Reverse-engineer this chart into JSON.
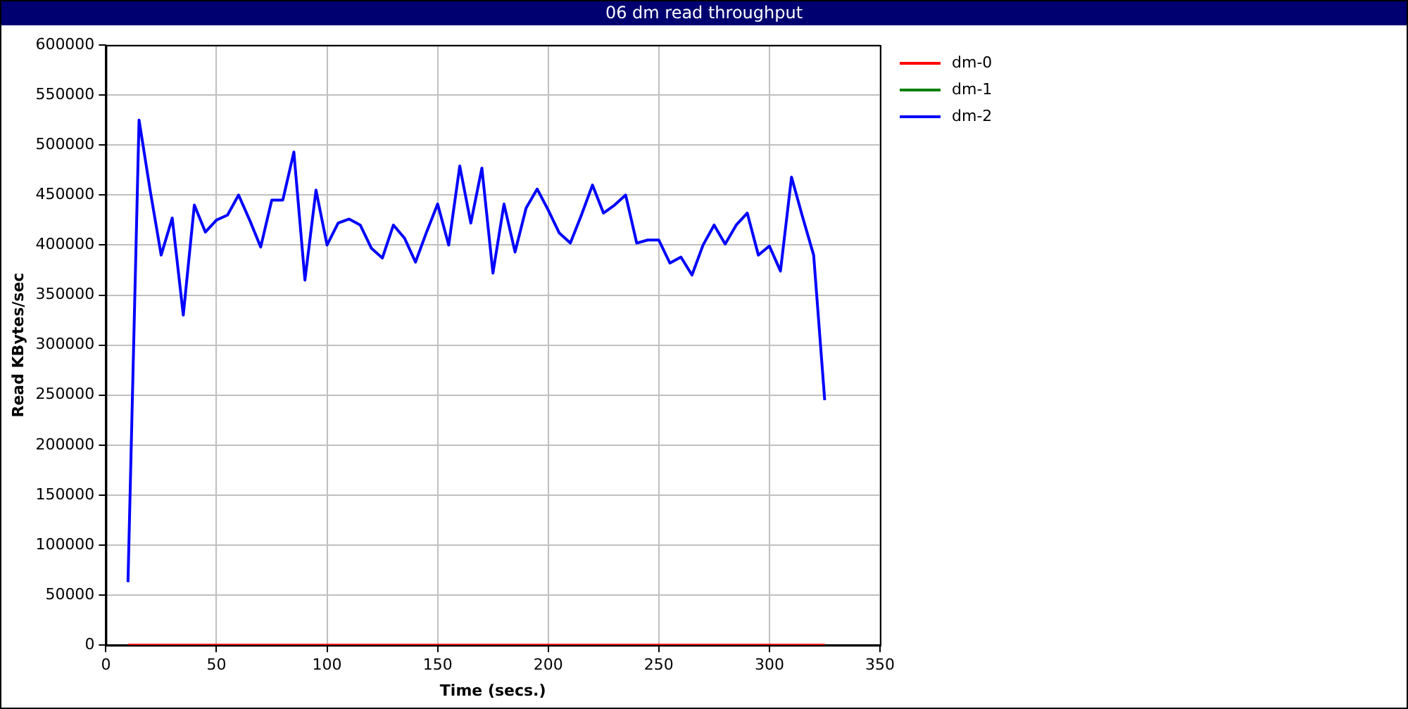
{
  "chart_data": {
    "type": "line",
    "title": "06 dm read throughput",
    "xlabel": "Time (secs.)",
    "ylabel": "Read KBytes/sec",
    "x": [
      10,
      15,
      20,
      25,
      30,
      35,
      40,
      45,
      50,
      55,
      60,
      65,
      70,
      75,
      80,
      85,
      90,
      95,
      100,
      105,
      110,
      115,
      120,
      125,
      130,
      135,
      140,
      145,
      150,
      155,
      160,
      165,
      170,
      175,
      180,
      185,
      190,
      195,
      200,
      205,
      210,
      215,
      220,
      225,
      230,
      235,
      240,
      245,
      250,
      255,
      260,
      265,
      270,
      275,
      280,
      285,
      290,
      295,
      300,
      305,
      310,
      315,
      320,
      325
    ],
    "series": [
      {
        "name": "dm-0",
        "color": "#ff0000",
        "values": [
          0,
          0,
          0,
          0,
          0,
          0,
          0,
          0,
          0,
          0,
          0,
          0,
          0,
          0,
          0,
          0,
          0,
          0,
          0,
          0,
          0,
          0,
          0,
          0,
          0,
          0,
          0,
          0,
          0,
          0,
          0,
          0,
          0,
          0,
          0,
          0,
          0,
          0,
          0,
          0,
          0,
          0,
          0,
          0,
          0,
          0,
          0,
          0,
          0,
          0,
          0,
          0,
          0,
          0,
          0,
          0,
          0,
          0,
          0,
          0,
          0,
          0,
          0,
          0
        ]
      },
      {
        "name": "dm-1",
        "color": "#008000",
        "values": [
          null,
          null,
          null,
          null,
          null,
          null,
          null,
          null,
          null,
          null,
          null,
          null,
          null,
          null,
          null,
          null,
          null,
          null,
          null,
          null,
          null,
          null,
          null,
          null,
          null,
          null,
          null,
          null,
          null,
          null,
          null,
          null,
          null,
          null,
          null,
          null,
          null,
          null,
          null,
          null,
          null,
          null,
          null,
          null,
          null,
          null,
          null,
          null,
          null,
          null,
          null,
          null,
          null,
          null,
          null,
          null,
          null,
          null,
          null,
          null,
          null,
          null,
          null,
          null
        ]
      },
      {
        "name": "dm-2",
        "color": "#0000ff",
        "values": [
          63000,
          525000,
          455000,
          390000,
          427000,
          330000,
          440000,
          413000,
          425000,
          430000,
          450000,
          425000,
          398000,
          445000,
          445000,
          493000,
          365000,
          455000,
          400000,
          422000,
          426000,
          420000,
          397000,
          387000,
          420000,
          407000,
          383000,
          413000,
          441000,
          400000,
          479000,
          422000,
          477000,
          372000,
          441000,
          393000,
          437000,
          456000,
          435000,
          412000,
          402000,
          430000,
          460000,
          432000,
          440000,
          450000,
          402000,
          405000,
          405000,
          382000,
          388000,
          370000,
          400000,
          420000,
          401000,
          420000,
          432000,
          390000,
          399000,
          374000,
          468000,
          428000,
          390000,
          245000
        ]
      }
    ],
    "xlim": [
      0,
      350
    ],
    "xticks": [
      0,
      50,
      100,
      150,
      200,
      250,
      300,
      350
    ],
    "ylim": [
      0,
      600000
    ],
    "yticks": [
      0,
      50000,
      100000,
      150000,
      200000,
      250000,
      300000,
      350000,
      400000,
      450000,
      500000,
      550000,
      600000
    ],
    "grid": true,
    "legend": "top right",
    "marker": "none",
    "line_style": "solid"
  }
}
